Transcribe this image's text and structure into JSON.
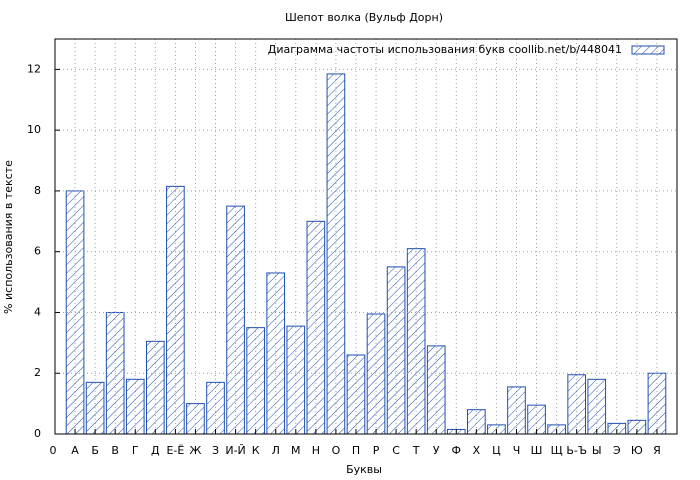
{
  "chart_data": {
    "type": "bar",
    "title": "Шепот волка (Вульф Дорн)",
    "xlabel": "Буквы",
    "ylabel": "% использования в тексте",
    "categories": [
      "А",
      "Б",
      "В",
      "Г",
      "Д",
      "Е-Ё",
      "Ж",
      "З",
      "И-Й",
      "К",
      "Л",
      "М",
      "Н",
      "О",
      "П",
      "Р",
      "С",
      "Т",
      "У",
      "Ф",
      "Х",
      "Ц",
      "Ч",
      "Ш",
      "Щ",
      "Ь-Ъ",
      "Ы",
      "Э",
      "Ю",
      "Я"
    ],
    "xlim": [
      0,
      30
    ],
    "xticks": [
      0
    ],
    "series": [
      {
        "name": "Диаграмма частоты использования букв  coollib.net/b/448041",
        "color": "#1f4fb0",
        "values": [
          8.0,
          1.7,
          4.0,
          1.8,
          3.05,
          8.15,
          1.0,
          1.7,
          7.5,
          3.5,
          5.3,
          3.55,
          7.0,
          11.85,
          2.6,
          3.95,
          5.5,
          6.1,
          2.9,
          0.15,
          0.8,
          0.3,
          1.55,
          0.95,
          0.3,
          1.95,
          1.8,
          0.35,
          0.45,
          2.0
        ]
      }
    ],
    "ylim": [
      0,
      13
    ],
    "yticks": [
      0,
      2,
      4,
      6,
      8,
      10,
      12
    ],
    "grid": true,
    "legend": "top-right"
  }
}
